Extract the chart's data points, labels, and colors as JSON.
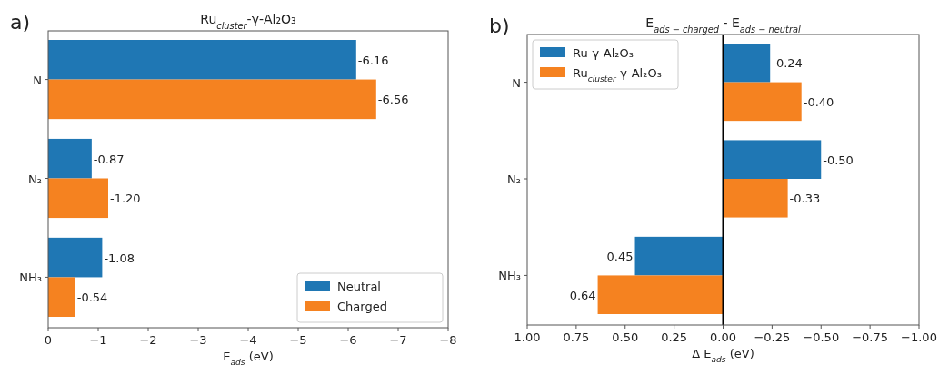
{
  "chart_data": [
    {
      "type": "bar",
      "orientation": "horizontal",
      "title": "Ru$_{cluster}$-γ-Al₂O₃",
      "xlabel": "E$_{ads}$ (eV)",
      "annotations": [
        "a)"
      ],
      "categories": [
        "N",
        "N₂",
        "NH₃"
      ],
      "series": [
        {
          "name": "Neutral",
          "color": "#1f77b4",
          "values": [
            -6.16,
            -0.87,
            -1.08
          ],
          "value_labels": [
            "-6.16",
            "-0.87",
            "-1.08"
          ]
        },
        {
          "name": "Charged",
          "color": "#f58220",
          "values": [
            -6.56,
            -1.2,
            -0.54
          ],
          "value_labels": [
            "-6.56",
            "-1.20",
            "-0.54"
          ]
        }
      ],
      "xlim": [
        0,
        -8
      ],
      "xticks": [
        0,
        {
          "value": -1,
          "label": "−1"
        },
        {
          "value": -2,
          "label": "−2"
        },
        {
          "value": -3,
          "label": "−3"
        },
        {
          "value": -4,
          "label": "−4"
        },
        {
          "value": -5,
          "label": "−5"
        },
        {
          "value": -6,
          "label": "−6"
        },
        {
          "value": -7,
          "label": "−7"
        },
        {
          "value": -8,
          "label": "−8"
        }
      ],
      "grid": false,
      "legend": "bottom right"
    },
    {
      "type": "bar",
      "orientation": "horizontal",
      "title": "E$_{ads − charged}$ - E$_{ads − neutral}$",
      "xlabel": "Δ E$_{ads}$ (eV)",
      "annotations": [
        "b)"
      ],
      "categories": [
        "N",
        "N₂",
        "NH₃"
      ],
      "series": [
        {
          "name": "Ru-γ-Al₂O₃",
          "color": "#1f77b4",
          "values": [
            -0.24,
            -0.5,
            0.45
          ],
          "value_labels": [
            "-0.24",
            "-0.50",
            "0.45"
          ]
        },
        {
          "name": "Ru$_{cluster}$-γ-Al₂O₃",
          "color": "#f58220",
          "values": [
            -0.4,
            -0.33,
            0.64
          ],
          "value_labels": [
            "-0.40",
            "-0.33",
            "0.64"
          ]
        }
      ],
      "xlim": [
        1,
        -1
      ],
      "xticks": [
        {
          "value": 1,
          "label": "1.00"
        },
        {
          "value": 0.75,
          "label": "0.75"
        },
        {
          "value": 0.5,
          "label": "0.50"
        },
        {
          "value": 0.25,
          "label": "0.25"
        },
        {
          "value": 0,
          "label": "0.00"
        },
        {
          "value": -0.25,
          "label": "−0.25"
        },
        {
          "value": -0.5,
          "label": "−0.50"
        },
        {
          "value": -0.75,
          "label": "−0.75"
        },
        {
          "value": -1,
          "label": "−1.00"
        }
      ],
      "ref_lines": [
        {
          "axis": "x",
          "value": 0,
          "color": "#000000"
        }
      ],
      "grid": false,
      "legend": "top left"
    }
  ]
}
